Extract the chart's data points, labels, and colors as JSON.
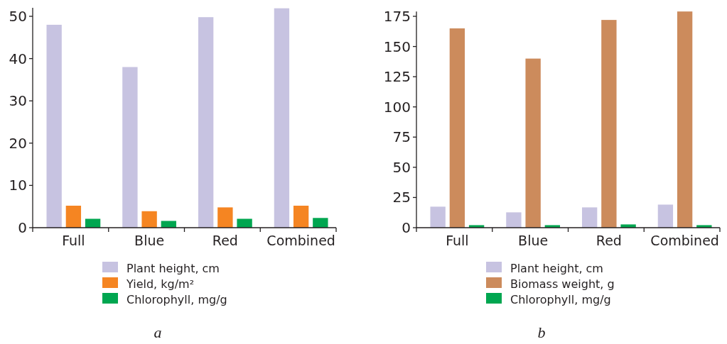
{
  "chart_data": [
    {
      "type": "bar",
      "categories": [
        "Full",
        "Blue",
        "Red",
        "Combined"
      ],
      "ylim": [
        0,
        52
      ],
      "yticks": [
        0,
        10,
        20,
        30,
        40,
        50
      ],
      "grid": false,
      "legend": "bottom",
      "annotations": [
        "a"
      ],
      "series": [
        {
          "name": "Plant height, cm",
          "color": "#c7c3e1",
          "values": [
            48,
            38,
            49.8,
            51.9
          ]
        },
        {
          "name": "Yield, kg/m²",
          "color": "#f58522",
          "values": [
            5.2,
            3.9,
            4.8,
            5.2
          ]
        },
        {
          "name": "Chlorophyll, mg/g",
          "color": "#00a650",
          "values": [
            2.1,
            1.6,
            2.1,
            2.3
          ]
        }
      ]
    },
    {
      "type": "bar",
      "categories": [
        "Full",
        "Blue",
        "Red",
        "Combined"
      ],
      "ylim": [
        0,
        179
      ],
      "yticks": [
        0,
        25,
        50,
        75,
        100,
        125,
        150,
        175
      ],
      "grid": false,
      "legend": "bottom",
      "annotations": [
        "b"
      ],
      "series": [
        {
          "name": "Plant height, cm",
          "color": "#c7c3e1",
          "values": [
            17.4,
            12.7,
            16.8,
            19.1
          ]
        },
        {
          "name": "Biomass weight, g",
          "color": "#cc8b5c",
          "values": [
            165,
            140,
            172,
            179
          ]
        },
        {
          "name": "Chlorophyll, mg/g",
          "color": "#00a650",
          "values": [
            2.1,
            2.1,
            2.7,
            2.1
          ]
        }
      ]
    }
  ]
}
